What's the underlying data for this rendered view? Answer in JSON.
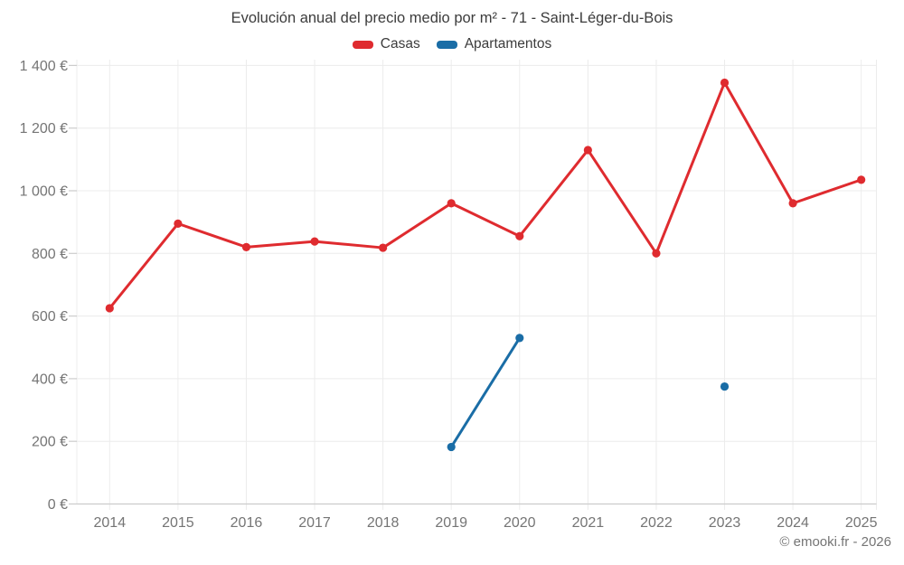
{
  "header": {
    "title": "Evolución anual del precio medio por m² - 71 - Saint-Léger-du-Bois"
  },
  "legend": {
    "items": [
      {
        "label": "Casas",
        "color": "#df2b2f"
      },
      {
        "label": "Apartamentos",
        "color": "#1a6da6"
      }
    ]
  },
  "footer": {
    "credit": "© emooki.fr - 2026"
  },
  "chart_data": {
    "type": "line",
    "title": "Evolución anual del precio medio por m² - 71 - Saint-Léger-du-Bois",
    "categories": [
      2014,
      2015,
      2016,
      2017,
      2018,
      2019,
      2020,
      2021,
      2022,
      2023,
      2024,
      2025
    ],
    "series": [
      {
        "name": "Casas",
        "color": "#df2b2f",
        "values": [
          625,
          895,
          820,
          838,
          818,
          960,
          855,
          1130,
          800,
          1345,
          960,
          1035
        ]
      },
      {
        "name": "Apartamentos",
        "color": "#1a6da6",
        "values": [
          null,
          null,
          null,
          null,
          null,
          182,
          530,
          null,
          null,
          375,
          null,
          null
        ]
      }
    ],
    "ylabel": "",
    "xlabel": "",
    "ylim": [
      0,
      1400
    ],
    "ytick_step": 200,
    "yticklabels": [
      "0 €",
      "200 €",
      "400 €",
      "600 €",
      "800 €",
      "1 000 €",
      "1 200 €",
      "1 400 €"
    ],
    "currency_suffix": "€",
    "grid": true,
    "legend_position": "top",
    "footer": "© emooki.fr - 2026"
  }
}
